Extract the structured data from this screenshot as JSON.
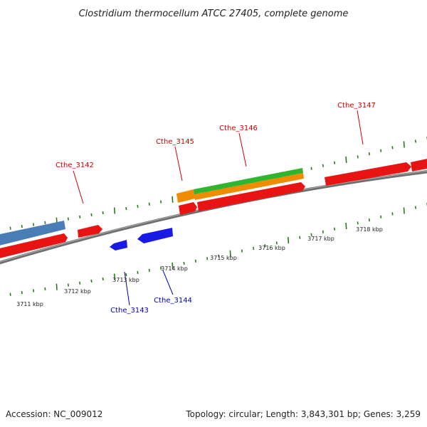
{
  "title": "Clostridium thermocellum ATCC 27405, complete genome",
  "footer": {
    "accession": "Accession: NC_009012",
    "summary": "Topology: circular; Length: 3,843,301 bp; Genes: 3,259"
  },
  "colors": {
    "backbone": "#7a7a7a",
    "forward_label": "#cc0000",
    "reverse_label": "#0000bb",
    "tick": "#2a7a1a",
    "cds": "#ee1111",
    "reverse_cds": "#1a1ae6",
    "orange": "#f08c00",
    "green": "#2fb52f",
    "steelblue": "#4a7db5"
  },
  "kbp_ticks": [
    {
      "label": "3711 kbp",
      "kbp": 3711
    },
    {
      "label": "3712 kbp",
      "kbp": 3712
    },
    {
      "label": "3713 kbp",
      "kbp": 3713
    },
    {
      "label": "3714 kbp",
      "kbp": 3714
    },
    {
      "label": "3715 kbp",
      "kbp": 3715
    },
    {
      "label": "3716 kbp",
      "kbp": 3716
    },
    {
      "label": "3717 kbp",
      "kbp": 3717
    },
    {
      "label": "3718 kbp",
      "kbp": 3718
    }
  ],
  "gene_labels": [
    {
      "text": "Cthe_3142",
      "strand": "forward"
    },
    {
      "text": "Cthe_3145",
      "strand": "forward"
    },
    {
      "text": "Cthe_3146",
      "strand": "forward"
    },
    {
      "text": "Cthe_3147",
      "strand": "forward"
    },
    {
      "text": "Cthe_3143",
      "strand": "reverse"
    },
    {
      "text": "Cthe_3144",
      "strand": "reverse"
    }
  ]
}
